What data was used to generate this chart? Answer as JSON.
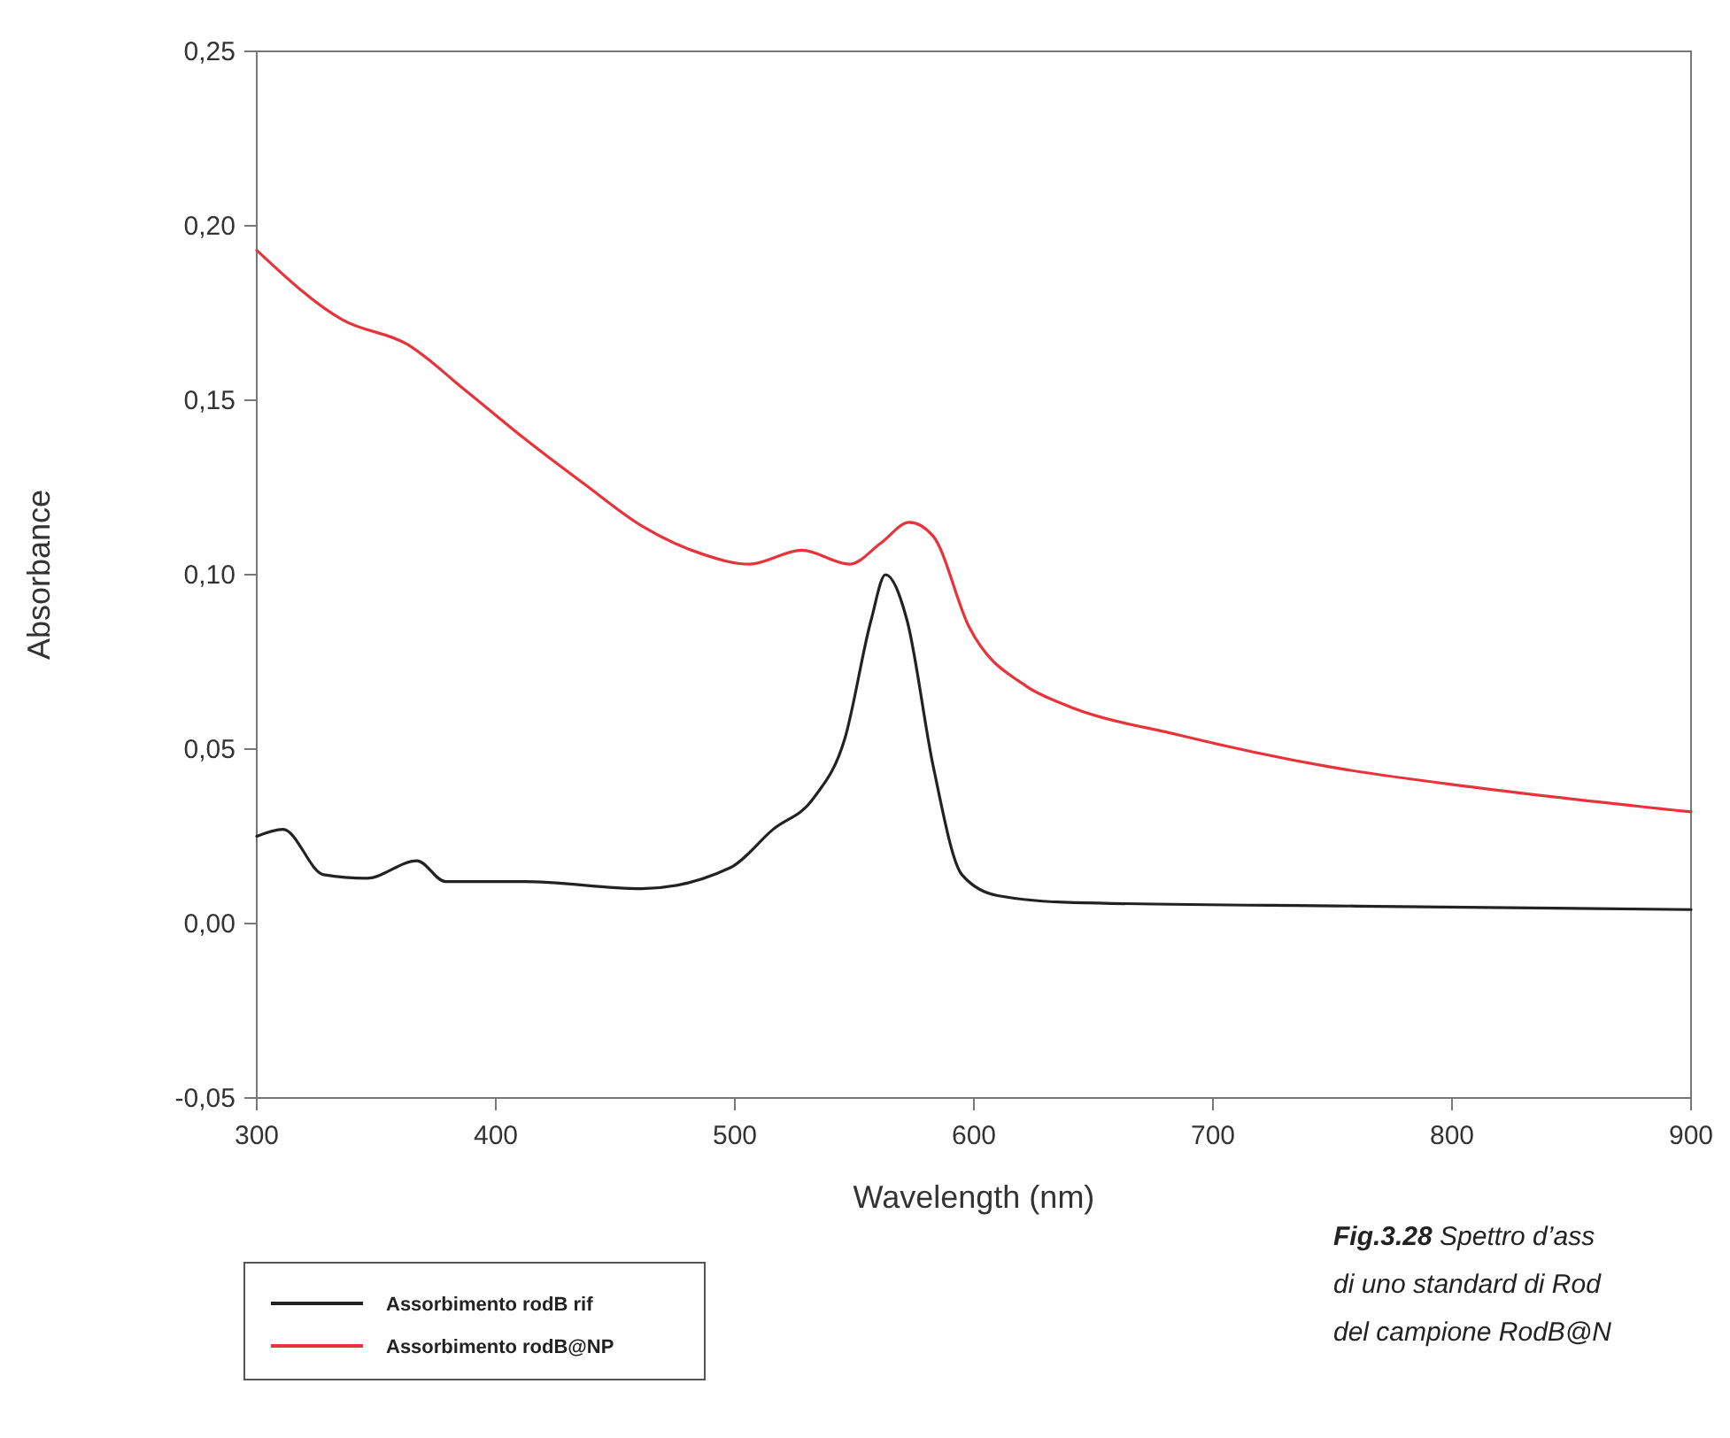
{
  "chart_data": {
    "type": "line",
    "xlabel": "Wavelength (nm)",
    "ylabel": "Absorbance",
    "xlim": [
      300,
      900
    ],
    "ylim": [
      -0.05,
      0.25
    ],
    "xticks": [
      300,
      400,
      500,
      600,
      700,
      800,
      900
    ],
    "yticks": [
      {
        "value": -0.05,
        "label": "-0,05"
      },
      {
        "value": 0,
        "label": "0,00"
      },
      {
        "value": 0.05,
        "label": "0,05"
      },
      {
        "value": 0.1,
        "label": "0,10"
      },
      {
        "value": 0.15,
        "label": "0,15"
      },
      {
        "value": 0.2,
        "label": "0,20"
      },
      {
        "value": 0.25,
        "label": "0,25"
      }
    ],
    "grid": false,
    "legend": "bottom left",
    "line_style": "solid",
    "marker": "none",
    "series": [
      {
        "name": "Assorbimento rodB rif",
        "color": "#222222",
        "x": [
          300,
          311,
          328,
          346,
          367,
          379,
          412,
          461,
          498,
          516,
          533,
          546,
          557,
          563,
          572,
          583,
          595,
          610,
          642,
          760,
          900
        ],
        "values": [
          0.025,
          0.027,
          0.014,
          0.013,
          0.018,
          0.012,
          0.012,
          0.01,
          0.016,
          0.027,
          0.036,
          0.053,
          0.087,
          0.1,
          0.087,
          0.045,
          0.014,
          0.008,
          0.006,
          0.005,
          0.004
        ]
      },
      {
        "name": "Assorbimento rodB@NP",
        "color": "#e8333a",
        "x": [
          300,
          336,
          363,
          387,
          412,
          437,
          461,
          486,
          506,
          528,
          548,
          561,
          573,
          583,
          598,
          622,
          637,
          686,
          748,
          810,
          900
        ],
        "values": [
          0.193,
          0.173,
          0.166,
          0.153,
          0.139,
          0.126,
          0.114,
          0.106,
          0.103,
          0.107,
          0.103,
          0.109,
          0.115,
          0.111,
          0.085,
          0.068,
          0.063,
          0.054,
          0.045,
          0.039,
          0.032
        ]
      }
    ],
    "annotations": [
      "Fig.3.28 Spettro d’ass",
      "di uno standard di Rod",
      "del campione RodB@N"
    ]
  }
}
